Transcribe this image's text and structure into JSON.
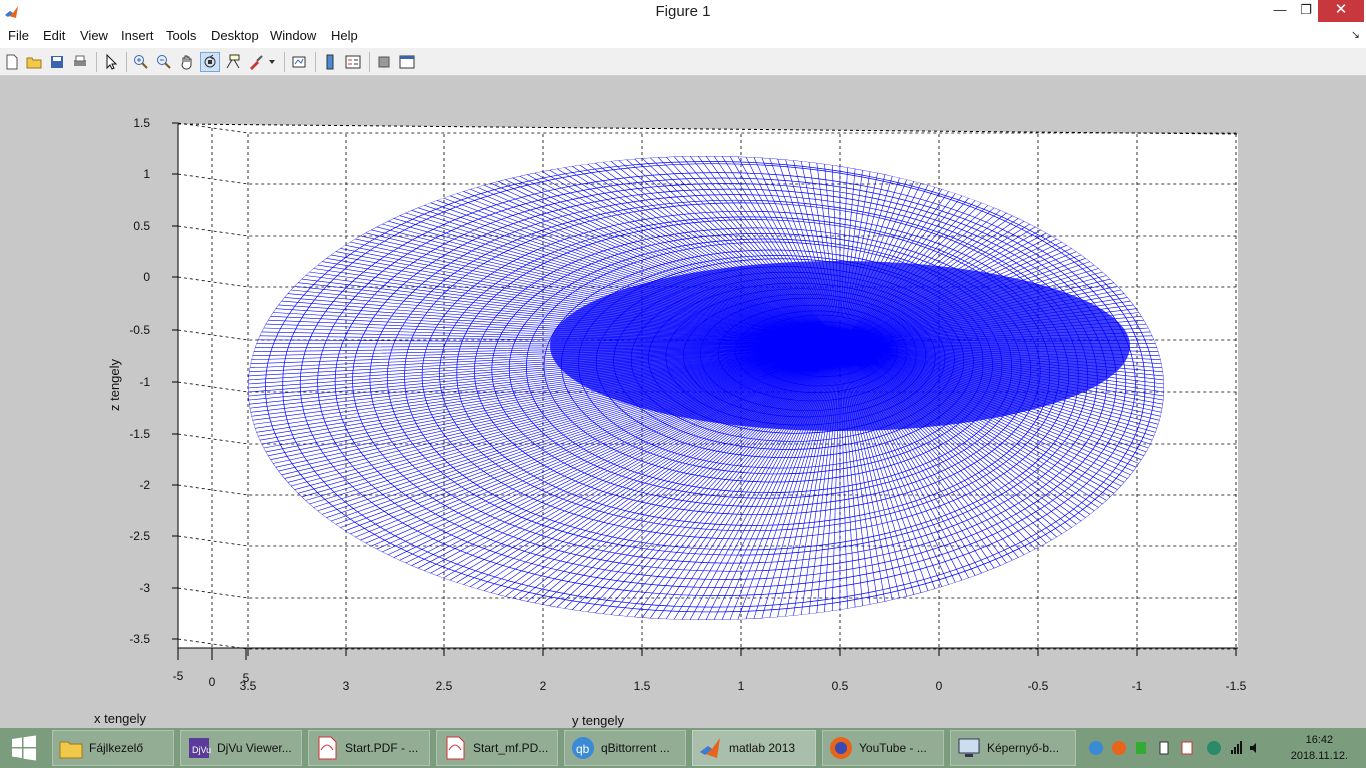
{
  "window": {
    "title": "Figure 1"
  },
  "menu": [
    "File",
    "Edit",
    "View",
    "Insert",
    "Tools",
    "Desktop",
    "Window",
    "Help"
  ],
  "axes": {
    "xlabel": "x tengely",
    "ylabel": "y tengely",
    "zlabel": "z tengely",
    "z_ticks": [
      "1.5",
      "1",
      "0.5",
      "0",
      "-0.5",
      "-1",
      "-1.5",
      "-2",
      "-2.5",
      "-3",
      "-3.5"
    ],
    "y_ticks": [
      "3.5",
      "3",
      "2.5",
      "2",
      "1.5",
      "1",
      "0.5",
      "0",
      "-0.5",
      "-1",
      "-1.5"
    ],
    "x_ticks": [
      "-5",
      "0",
      "5"
    ],
    "line_color": "#0000ff"
  },
  "taskbar": {
    "items": [
      {
        "label": "Fájlkezelő",
        "icon": "folder-icon"
      },
      {
        "label": "DjVu Viewer...",
        "icon": "djvu-icon"
      },
      {
        "label": "Start.PDF - ...",
        "icon": "pdf-icon"
      },
      {
        "label": "Start_mf.PD...",
        "icon": "pdf-icon"
      },
      {
        "label": "qBittorrent ...",
        "icon": "qbittorrent-icon"
      },
      {
        "label": "matlab 2013",
        "icon": "matlab-icon"
      },
      {
        "label": "YouTube - ...",
        "icon": "firefox-icon"
      },
      {
        "label": "Képernyő-b...",
        "icon": "screenshot-icon"
      }
    ],
    "clock_time": "16:42",
    "clock_date": "2018.11.12."
  }
}
